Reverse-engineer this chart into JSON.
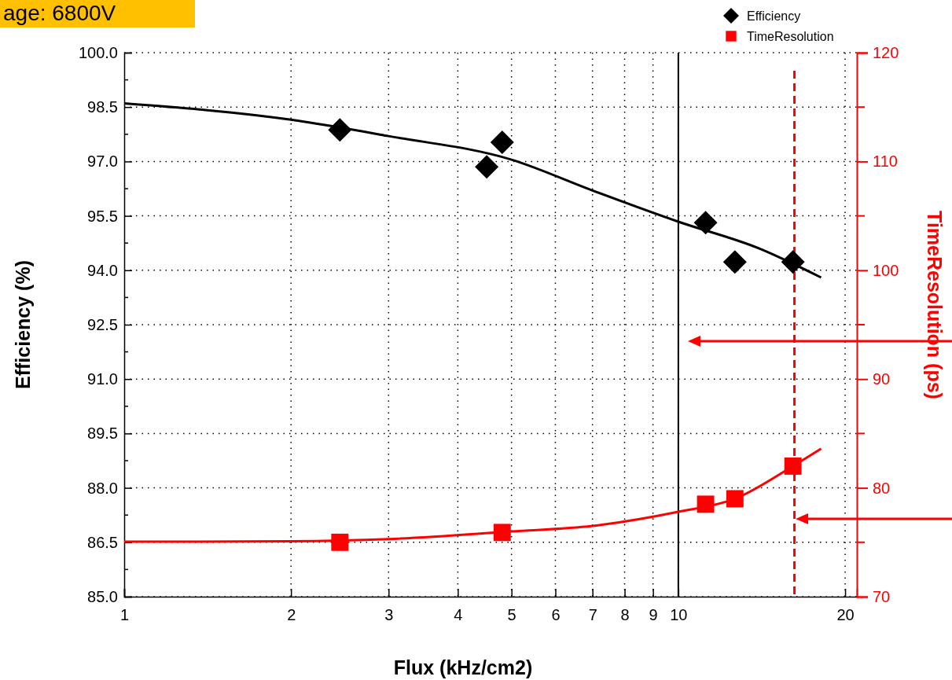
{
  "chart_data": {
    "type": "scatter",
    "xlabel": "Flux (kHz/cm2)",
    "ylabel": "Efficiency (%)",
    "y2label": "TimeResolution (ps)",
    "annotations": [
      "age: 6800V"
    ],
    "log": "x",
    "grid": true,
    "legend": "top right",
    "xlim": [
      1,
      21
    ],
    "xticks": [
      1,
      2,
      3,
      4,
      5,
      6,
      7,
      8,
      9,
      10,
      20
    ],
    "ylim": [
      85,
      100
    ],
    "yticks": [
      {
        "value": 85,
        "label": "85.0"
      },
      {
        "value": 86.5,
        "label": "86.5"
      },
      {
        "value": 88,
        "label": "88.0"
      },
      {
        "value": 89.5,
        "label": "89.5"
      },
      {
        "value": 91,
        "label": "91.0"
      },
      {
        "value": 92.5,
        "label": "92.5"
      },
      {
        "value": 94,
        "label": "94.0"
      },
      {
        "value": 95.5,
        "label": "95.5"
      },
      {
        "value": 97,
        "label": "97.0"
      },
      {
        "value": 98.5,
        "label": "98.5"
      },
      {
        "value": 100,
        "label": "100.0"
      }
    ],
    "y2lim": [
      70,
      120
    ],
    "y2ticks": [
      70,
      80,
      90,
      100,
      110,
      120
    ],
    "ref_lines": [
      {
        "axis": "x",
        "value": 10,
        "color": "#000000",
        "line_style": "solid"
      },
      {
        "axis": "x",
        "value": 16.2,
        "color": "#ff0000",
        "line_style": "dashed"
      }
    ],
    "series": [
      {
        "name": "Efficiency",
        "marker": "diamond",
        "color": "#000000",
        "x": [
          2.45,
          4.51,
          4.81,
          11.2,
          12.65,
          16.1
        ],
        "values": [
          97.87,
          96.85,
          97.53,
          95.31,
          94.23,
          94.23
        ]
      },
      {
        "name": "TimeResolution",
        "marker": "square",
        "color": "#ff0000",
        "axis": "y2",
        "x": [
          2.45,
          4.81,
          11.2,
          12.65,
          16.1
        ],
        "values": [
          75.0,
          75.9,
          78.5,
          79.0,
          82.0
        ]
      },
      {
        "type": "line",
        "marker": "none",
        "color": "#000000",
        "x": [
          1,
          2,
          3,
          5,
          7,
          10,
          14,
          18.1
        ],
        "values": [
          98.6,
          98.15,
          97.7,
          97.05,
          96.2,
          95.34,
          94.6,
          93.8
        ]
      },
      {
        "type": "line",
        "marker": "none",
        "color": "#ff0000",
        "axis": "y2",
        "x": [
          1,
          2,
          3,
          5,
          7,
          10,
          12.65,
          16.1,
          18.1
        ],
        "values": [
          75.05,
          75.1,
          75.3,
          76.0,
          76.5,
          77.8,
          79.0,
          82.0,
          83.6
        ]
      }
    ]
  }
}
